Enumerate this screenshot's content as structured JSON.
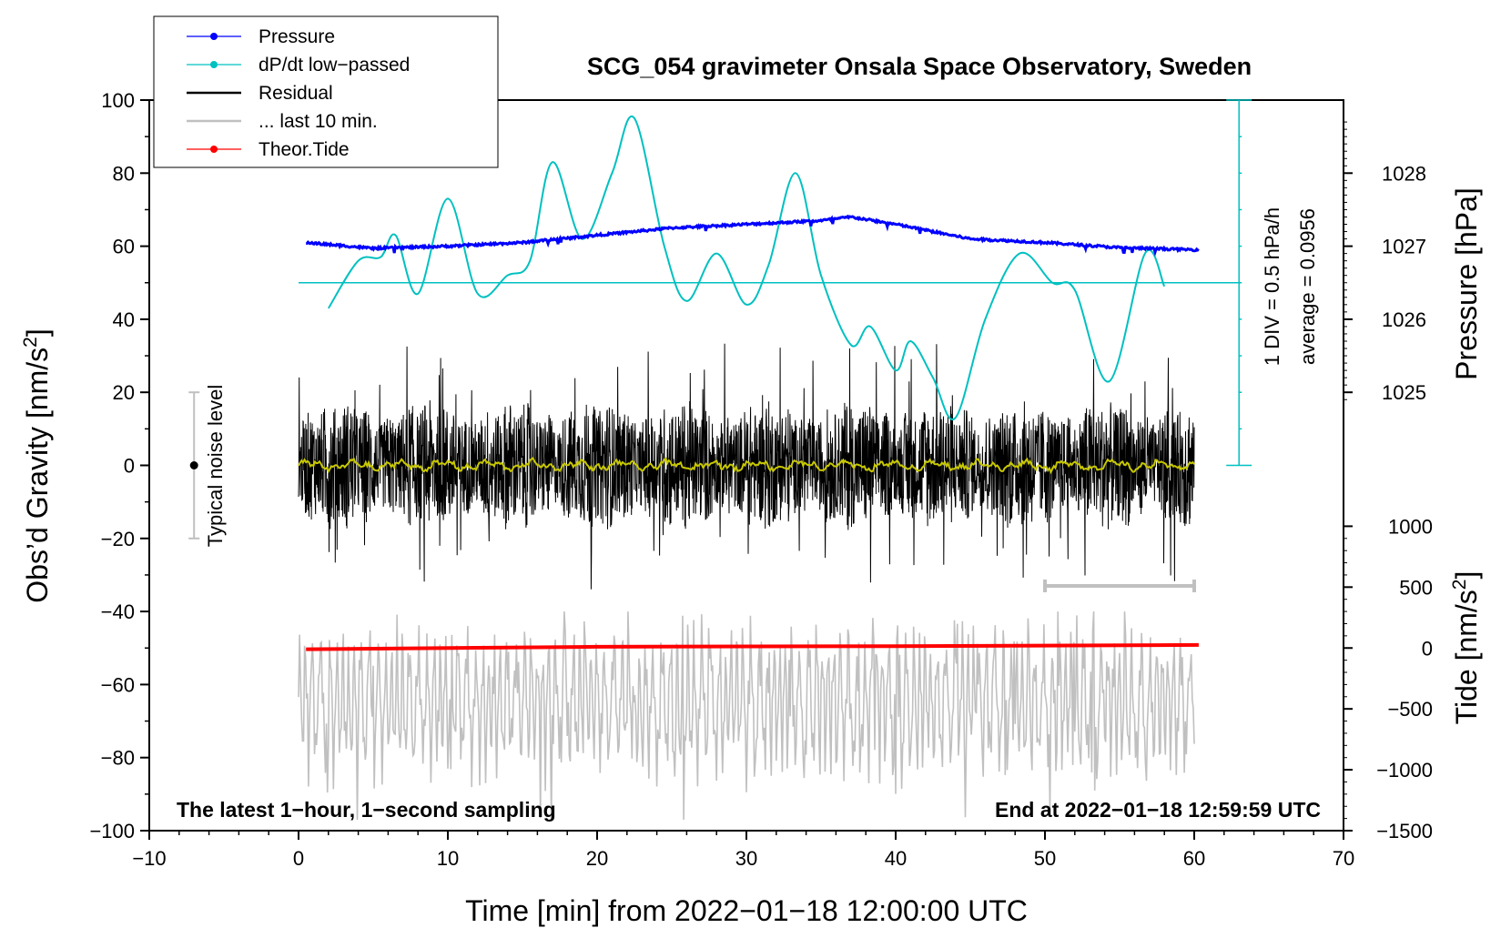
{
  "chart_data": {
    "type": "line",
    "title": "SCG_054 gravimeter Onsala Space Observatory, Sweden",
    "xlabel": "Time [min] from 2022−01−18 12:00:00 UTC",
    "ylabel_left": "Obs’d Gravity [nm/s²]",
    "ylabel_left_main": "Obs’d Gravity [nm/s",
    "ylabel_left_sup": "2",
    "ylabel_left_tail": "]",
    "ylabel_right_pressure": "Pressure [hPa]",
    "ylabel_right_tide_main": "Tide [nm/s",
    "ylabel_right_tide_sup": "2",
    "ylabel_right_tide_tail": "]",
    "xlim": [
      -10,
      70
    ],
    "ylim": [
      -100,
      100
    ],
    "x_ticks": [
      "−10",
      "0",
      "10",
      "20",
      "30",
      "40",
      "50",
      "60",
      "70"
    ],
    "y_ticks": [
      "−100",
      "−80",
      "−60",
      "−40",
      "−20",
      "0",
      "20",
      "40",
      "60",
      "80",
      "100"
    ],
    "pressure_ticks": [
      "1025",
      "1026",
      "1027",
      "1028"
    ],
    "tide_ticks": [
      "−1500",
      "−1000",
      "−500",
      "0",
      "500",
      "1000"
    ],
    "dpdt_scale": "1 DIV = 0.5 hPa/h",
    "dpdt_average": "average = 0.0956",
    "noise_label": "Typical noise level",
    "note_left": "The latest 1−hour, 1−second sampling",
    "note_right": "End at 2022−01−18 12:59:59 UTC",
    "legend": [
      {
        "label": "Pressure",
        "color": "#0000ff",
        "marker": true
      },
      {
        "label": "dP/dt low−passed",
        "color": "#00c0c0",
        "marker": true
      },
      {
        "label": "Residual",
        "color": "#000000",
        "marker": false
      },
      {
        "label": "... last 10 min.",
        "color": "#c0c0c0",
        "marker": false
      },
      {
        "label": "Theor.Tide",
        "color": "#ff0000",
        "marker": true
      }
    ],
    "series": [
      {
        "name": "Pressure",
        "color": "#0000ff",
        "axis": "pressure_hPa",
        "x": [
          0.5,
          5,
          10,
          15,
          20,
          25,
          30,
          35,
          37,
          40,
          45,
          50,
          55,
          60.3
        ],
        "values": [
          1027.05,
          1026.97,
          1027.0,
          1027.05,
          1027.15,
          1027.25,
          1027.3,
          1027.35,
          1027.4,
          1027.3,
          1027.1,
          1027.05,
          1026.98,
          1026.95
        ]
      },
      {
        "name": "dP/dt low−passed",
        "color": "#00c0c0",
        "axis": "left_units",
        "x": [
          2,
          4,
          5.5,
          6.5,
          8,
          10,
          12,
          14,
          15.5,
          17,
          19,
          21,
          22.5,
          24.5,
          26,
          28,
          30,
          31.5,
          33.3,
          35,
          37,
          38.3,
          40,
          41,
          42.5,
          44,
          46,
          48.3,
          50.5,
          52,
          54.3,
          56.7,
          58
        ],
        "values": [
          43,
          56,
          57,
          63,
          47,
          73,
          47,
          52,
          56,
          83,
          62,
          80,
          95,
          60,
          45,
          58,
          44,
          55,
          80,
          52,
          33,
          38,
          26,
          34,
          24,
          13,
          40,
          58,
          50,
          48,
          23,
          58,
          49
        ]
      },
      {
        "name": "dP/dt average line",
        "color": "#00c0c0",
        "axis": "left_units",
        "x": [
          0,
          63
        ],
        "values": [
          50,
          50
        ]
      },
      {
        "name": "Residual",
        "color": "#000000",
        "axis": "left_units",
        "x_range": [
          0,
          60
        ],
        "envelope": [
          -35,
          35
        ],
        "smoothed_color": "#c8c800"
      },
      {
        "name": "... last 10 min.",
        "color": "#c0c0c0",
        "axis": "left_units",
        "x_range": [
          0,
          60
        ],
        "values_center": -65,
        "envelope": [
          -97,
          -40
        ]
      },
      {
        "name": "Theor.Tide",
        "color": "#ff0000",
        "axis": "tide_nm_s2",
        "x": [
          0.5,
          20,
          40,
          60.3
        ],
        "values": [
          -10,
          10,
          15,
          25
        ]
      }
    ],
    "noise_bar": {
      "x": -7,
      "center": 0,
      "min": -20,
      "max": 20
    },
    "gray_bar": {
      "x_min": 50,
      "x_max": 60,
      "y": -33
    }
  }
}
